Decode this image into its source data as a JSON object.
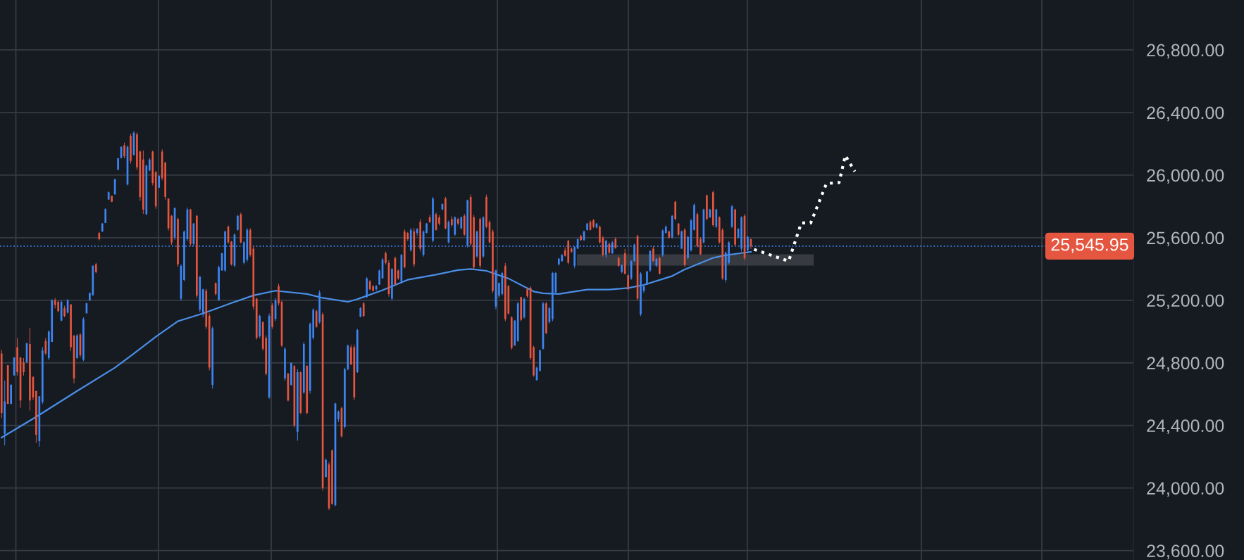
{
  "chart_data": {
    "type": "candlestick",
    "categories": [
      null,
      null,
      null,
      null,
      null,
      null,
      null,
      null,
      null,
      null,
      null,
      null,
      null,
      null,
      null,
      null,
      null,
      null,
      null,
      null,
      null,
      null,
      null,
      null,
      null,
      null,
      null,
      null,
      null,
      null,
      null,
      null,
      null,
      null,
      null,
      null,
      null,
      null,
      null,
      null,
      null,
      null,
      null,
      null,
      null,
      null,
      null,
      null,
      null,
      null,
      null,
      null,
      null,
      null,
      null,
      null,
      null,
      null,
      null,
      null,
      null,
      null,
      null,
      null,
      null,
      null,
      null,
      null,
      null,
      null,
      null,
      null,
      null,
      null,
      null,
      null,
      null,
      null,
      null,
      null,
      null,
      null,
      null,
      null,
      null,
      null,
      null,
      null,
      null,
      null,
      null,
      null,
      null,
      null,
      null,
      null,
      null,
      null,
      null,
      null,
      null,
      null,
      null,
      null,
      null,
      null,
      null,
      null,
      null,
      null,
      null,
      null,
      null,
      null,
      null,
      null,
      null,
      null,
      null,
      null,
      null,
      null,
      null,
      null,
      null,
      null,
      null,
      null,
      null,
      null,
      null,
      null,
      null,
      null,
      null,
      null,
      null,
      null,
      null,
      null,
      null,
      null,
      null,
      null,
      null,
      null,
      null,
      null,
      null,
      null,
      null,
      null,
      null,
      null,
      null,
      null,
      null,
      null,
      null,
      null,
      null,
      null,
      null,
      null,
      null,
      null,
      null,
      null,
      null,
      null,
      null,
      null,
      null,
      null,
      null,
      null,
      null,
      null,
      null,
      null,
      null,
      null,
      null,
      null,
      null,
      null,
      null,
      null,
      null,
      null,
      null,
      null,
      null,
      null,
      null,
      null,
      null,
      null,
      null,
      null,
      null,
      null,
      null,
      null,
      null,
      null,
      null,
      null,
      null,
      null,
      null,
      null,
      null,
      null,
      null,
      null,
      null,
      null,
      null,
      null,
      null,
      null,
      null,
      null,
      null,
      null,
      null,
      null,
      null,
      null,
      null,
      null,
      null,
      null,
      null,
      null,
      null,
      null,
      null,
      null,
      null,
      null,
      null,
      null,
      null,
      null,
      null,
      null,
      null,
      null,
      null,
      null,
      null,
      null,
      null,
      null,
      null,
      null,
      null,
      null,
      null,
      null,
      null,
      null,
      null,
      null,
      null,
      null,
      null,
      null,
      null,
      null,
      null,
      null,
      null,
      null,
      null,
      null,
      null,
      null,
      null,
      null,
      null,
      null,
      null,
      null,
      null,
      null,
      null,
      null,
      null,
      null,
      null,
      null,
      null,
      null,
      null,
      null,
      null,
      null,
      null,
      null,
      null,
      null,
      null,
      null,
      null,
      null,
      null,
      null,
      null,
      null,
      null,
      null,
      null,
      null,
      null,
      null,
      null,
      null,
      null,
      null,
      null,
      null,
      null,
      null,
      null,
      null,
      null,
      null,
      null,
      null,
      null,
      null,
      null,
      null,
      null,
      null,
      null,
      null,
      null,
      null,
      null,
      null,
      null,
      null,
      null,
      null,
      null,
      null,
      null,
      null,
      null,
      null,
      null,
      null,
      null,
      null,
      null,
      null
    ],
    "ohlc": [
      [
        24860,
        24884,
        24446,
        24480
      ],
      [
        24347,
        24686,
        24273,
        24554
      ],
      [
        24785,
        24785,
        24537,
        24537
      ],
      [
        24537,
        24661,
        24537,
        24661
      ],
      [
        24719,
        24835,
        24719,
        24835
      ],
      [
        24900,
        24959,
        24719,
        24740
      ],
      [
        24835,
        24835,
        24512,
        24560
      ],
      [
        24802,
        24830,
        24719,
        24740
      ],
      [
        24802,
        24926,
        24802,
        24926
      ],
      [
        24920,
        25025,
        24496,
        24560
      ],
      [
        24711,
        24711,
        24562,
        24580
      ],
      [
        24620,
        24620,
        24289,
        24340
      ],
      [
        24300,
        24587,
        24265,
        24587
      ],
      [
        24550,
        24901,
        24537,
        24880
      ],
      [
        24940,
        24959,
        24851,
        24860
      ],
      [
        24830,
        25008,
        24818,
        25000
      ],
      [
        24934,
        25207,
        24934,
        25200
      ],
      [
        25200,
        25215,
        25149,
        25170
      ],
      [
        25190,
        25198,
        25124,
        25130
      ],
      [
        25070,
        25198,
        25066,
        25190
      ],
      [
        25150,
        25165,
        25091,
        25100
      ],
      [
        25120,
        25207,
        25116,
        25200
      ],
      [
        25174,
        25174,
        24876,
        24900
      ],
      [
        24975,
        24975,
        24669,
        24700
      ],
      [
        24830,
        24983,
        24826,
        24975
      ],
      [
        24980,
        24991,
        24835,
        24850
      ],
      [
        24820,
        25091,
        24810,
        25080
      ],
      [
        25116,
        25182,
        25116,
        25182
      ],
      [
        25198,
        25248,
        25198,
        25248
      ],
      [
        25231,
        25422,
        25231,
        25422
      ],
      [
        25430,
        25438,
        25372,
        25380
      ],
      [
        25630,
        25636,
        25582,
        25590
      ],
      [
        25640,
        25694,
        25636,
        25690
      ],
      [
        25694,
        25785,
        25694,
        25785
      ],
      [
        25843,
        25896,
        25843,
        25890
      ],
      [
        25868,
        25868,
        25827,
        25830
      ],
      [
        25876,
        25975,
        25876,
        25975
      ],
      [
        26033,
        26108,
        26033,
        26108
      ],
      [
        26108,
        26182,
        26108,
        26182
      ],
      [
        26190,
        26207,
        26108,
        26120
      ],
      [
        25940,
        26190,
        25934,
        26180
      ],
      [
        26250,
        26265,
        26074,
        26090
      ],
      [
        26130,
        26281,
        26124,
        26270
      ],
      [
        26260,
        26273,
        26033,
        26050
      ],
      [
        26150,
        26157,
        25835,
        25860
      ],
      [
        26100,
        26157,
        25752,
        25780
      ],
      [
        25750,
        26066,
        25744,
        26060
      ],
      [
        26030,
        26108,
        26025,
        26100
      ],
      [
        26150,
        26157,
        25934,
        25950
      ],
      [
        26020,
        26025,
        25785,
        25800
      ],
      [
        25920,
        26000,
        25917,
        25995
      ],
      [
        26150,
        26165,
        25967,
        25980
      ],
      [
        26080,
        26083,
        25843,
        25860
      ],
      [
        25850,
        25851,
        25645,
        25660
      ],
      [
        25740,
        25744,
        25554,
        25570
      ],
      [
        25600,
        25793,
        25587,
        25790
      ],
      [
        25720,
        25727,
        25413,
        25430
      ],
      [
        25210,
        25430,
        25198,
        25420
      ],
      [
        25330,
        25645,
        25322,
        25640
      ],
      [
        25590,
        25793,
        25579,
        25780
      ],
      [
        25780,
        25785,
        25545,
        25560
      ],
      [
        25560,
        25694,
        25545,
        25690
      ],
      [
        25740,
        25744,
        25215,
        25230
      ],
      [
        25140,
        25355,
        25124,
        25350
      ],
      [
        25110,
        25273,
        25091,
        25270
      ],
      [
        25260,
        25273,
        25017,
        25030
      ],
      [
        25100,
        25116,
        24752,
        24770
      ],
      [
        24660,
        25033,
        24636,
        25020
      ],
      [
        25310,
        25314,
        25231,
        25240
      ],
      [
        25200,
        25422,
        25198,
        25410
      ],
      [
        25390,
        25504,
        25389,
        25500
      ],
      [
        25390,
        25645,
        25380,
        25640
      ],
      [
        25670,
        25678,
        25562,
        25570
      ],
      [
        25575,
        25579,
        25422,
        25430
      ],
      [
        25420,
        25628,
        25413,
        25620
      ],
      [
        25650,
        25744,
        25645,
        25740
      ],
      [
        25750,
        25760,
        25562,
        25570
      ],
      [
        25440,
        25579,
        25430,
        25570
      ],
      [
        25460,
        25661,
        25446,
        25650
      ],
      [
        25650,
        25661,
        25479,
        25490
      ],
      [
        25530,
        25545,
        25140,
        25160
      ],
      [
        25210,
        25215,
        24950,
        24960
      ],
      [
        24970,
        25108,
        24959,
        25100
      ],
      [
        25060,
        25066,
        24876,
        24890
      ],
      [
        24960,
        24975,
        24719,
        24730
      ],
      [
        24580,
        25116,
        24570,
        25100
      ],
      [
        25170,
        25182,
        25017,
        25030
      ],
      [
        25080,
        25215,
        25066,
        25200
      ],
      [
        25290,
        25306,
        25165,
        25180
      ],
      [
        25190,
        25198,
        24901,
        24910
      ],
      [
        24700,
        24901,
        24686,
        24890
      ],
      [
        24730,
        24736,
        24554,
        24560
      ],
      [
        24660,
        24802,
        24653,
        24800
      ],
      [
        24780,
        24785,
        24388,
        24400
      ],
      [
        24360,
        24760,
        24302,
        24740
      ],
      [
        24740,
        24744,
        24471,
        24480
      ],
      [
        24610,
        24934,
        24603,
        24920
      ],
      [
        24780,
        24785,
        24471,
        24480
      ],
      [
        24620,
        25058,
        24603,
        25050
      ],
      [
        24960,
        25149,
        24950,
        25140
      ],
      [
        25130,
        25141,
        25025,
        25030
      ],
      [
        25060,
        25264,
        25050,
        25250
      ],
      [
        25110,
        25124,
        23983,
        24000
      ],
      [
        24070,
        24190,
        24066,
        24180
      ],
      [
        24150,
        24165,
        23859,
        23870
      ],
      [
        24240,
        24248,
        23892,
        23900
      ],
      [
        23890,
        24545,
        23884,
        24540
      ],
      [
        24440,
        24496,
        24422,
        24490
      ],
      [
        24510,
        24521,
        24322,
        24330
      ],
      [
        24390,
        24769,
        24380,
        24760
      ],
      [
        24760,
        24917,
        24752,
        24910
      ],
      [
        24900,
        24917,
        24785,
        24790
      ],
      [
        24900,
        24917,
        24562,
        24580
      ],
      [
        24740,
        25017,
        24736,
        25010
      ],
      [
        25095,
        25157,
        25091,
        25150
      ],
      [
        25180,
        25190,
        25091,
        25100
      ],
      [
        25220,
        25347,
        25215,
        25340
      ],
      [
        25320,
        25331,
        25264,
        25270
      ],
      [
        25290,
        25298,
        25256,
        25260
      ],
      [
        25270,
        25298,
        25262,
        25290
      ],
      [
        25300,
        25397,
        25298,
        25390
      ],
      [
        25340,
        25471,
        25339,
        25460
      ],
      [
        25500,
        25512,
        25430,
        25440
      ],
      [
        25440,
        25455,
        25223,
        25240
      ],
      [
        25210,
        25405,
        25198,
        25400
      ],
      [
        25470,
        25479,
        25298,
        25300
      ],
      [
        25390,
        25397,
        25331,
        25340
      ],
      [
        25320,
        25496,
        25314,
        25490
      ],
      [
        25640,
        25653,
        25405,
        25410
      ],
      [
        25630,
        25636,
        25579,
        25590
      ],
      [
        25520,
        25661,
        25512,
        25650
      ],
      [
        25640,
        25661,
        25413,
        25430
      ],
      [
        25630,
        25661,
        25612,
        25655
      ],
      [
        25700,
        25719,
        25512,
        25530
      ],
      [
        25490,
        25645,
        25479,
        25640
      ],
      [
        25630,
        25694,
        25628,
        25690
      ],
      [
        25730,
        25744,
        25694,
        25700
      ],
      [
        25580,
        25860,
        25570,
        25850
      ],
      [
        25750,
        25760,
        25645,
        25650
      ],
      [
        25730,
        25744,
        25678,
        25690
      ],
      [
        25780,
        25818,
        25777,
        25815
      ],
      [
        25850,
        25860,
        25653,
        25660
      ],
      [
        25570,
        25711,
        25562,
        25700
      ],
      [
        25720,
        25736,
        25669,
        25680
      ],
      [
        25620,
        25736,
        25612,
        25730
      ],
      [
        25720,
        25727,
        25678,
        25690
      ],
      [
        25660,
        25736,
        25653,
        25730
      ],
      [
        25740,
        25752,
        25612,
        25620
      ],
      [
        25550,
        25843,
        25537,
        25840
      ],
      [
        25860,
        25876,
        25545,
        25560
      ],
      [
        25730,
        25744,
        25397,
        25410
      ],
      [
        25480,
        25645,
        25471,
        25640
      ],
      [
        25720,
        25727,
        25405,
        25420
      ],
      [
        25480,
        25736,
        25471,
        25730
      ],
      [
        25860,
        25876,
        25661,
        25670
      ],
      [
        25700,
        25711,
        25562,
        25570
      ],
      [
        25640,
        25653,
        25248,
        25260
      ],
      [
        25160,
        25397,
        25141,
        25390
      ],
      [
        25230,
        25314,
        25215,
        25310
      ],
      [
        25240,
        25380,
        25231,
        25375
      ],
      [
        25420,
        25438,
        25066,
        25080
      ],
      [
        25290,
        25298,
        25108,
        25115
      ],
      [
        25090,
        25099,
        24884,
        24895
      ],
      [
        24910,
        25074,
        24909,
        25070
      ],
      [
        24940,
        25190,
        24934,
        25180
      ],
      [
        25220,
        25223,
        25066,
        25075
      ],
      [
        25090,
        25215,
        25083,
        25210
      ],
      [
        25270,
        25281,
        25215,
        25225
      ],
      [
        25280,
        25289,
        24818,
        24830
      ],
      [
        24900,
        24909,
        24711,
        24720
      ],
      [
        24690,
        24777,
        24686,
        24770
      ],
      [
        24750,
        24884,
        24744,
        24880
      ],
      [
        24890,
        25190,
        24884,
        25180
      ],
      [
        25180,
        25190,
        24983,
        24990
      ],
      [
        25060,
        25157,
        25050,
        25150
      ],
      [
        25080,
        25380,
        25066,
        25375
      ],
      [
        25250,
        25380,
        25248,
        25375
      ],
      [
        25430,
        25471,
        25422,
        25465
      ],
      [
        25450,
        25496,
        25446,
        25490
      ],
      [
        25520,
        25537,
        25479,
        25485
      ],
      [
        25580,
        25587,
        25430,
        25440
      ],
      [
        25530,
        25537,
        25504,
        25510
      ],
      [
        25420,
        25545,
        25405,
        25540
      ],
      [
        25530,
        25595,
        25529,
        25590
      ],
      [
        25610,
        25620,
        25579,
        25585
      ],
      [
        25585,
        25645,
        25579,
        25640
      ],
      [
        25650,
        25694,
        25645,
        25690
      ],
      [
        25700,
        25711,
        25645,
        25650
      ],
      [
        25710,
        25719,
        25661,
        25670
      ],
      [
        25665,
        25694,
        25661,
        25690
      ],
      [
        25670,
        25678,
        25562,
        25570
      ],
      [
        25600,
        25612,
        25479,
        25490
      ],
      [
        25490,
        25587,
        25471,
        25580
      ],
      [
        25560,
        25570,
        25496,
        25505
      ],
      [
        25500,
        25579,
        25496,
        25570
      ],
      [
        25590,
        25603,
        25529,
        25535
      ],
      [
        25470,
        25479,
        25413,
        25420
      ],
      [
        25380,
        25430,
        25372,
        25425
      ],
      [
        25500,
        25529,
        25364,
        25370
      ],
      [
        25360,
        25364,
        25264,
        25270
      ],
      [
        25340,
        25455,
        25331,
        25450
      ],
      [
        25450,
        25562,
        25446,
        25555
      ],
      [
        25610,
        25620,
        25198,
        25210
      ],
      [
        25110,
        25380,
        25099,
        25370
      ],
      [
        25260,
        25298,
        25248,
        25290
      ],
      [
        25300,
        25388,
        25298,
        25385
      ],
      [
        25390,
        25521,
        25380,
        25515
      ],
      [
        25530,
        25545,
        25446,
        25450
      ],
      [
        25420,
        25471,
        25413,
        25465
      ],
      [
        25470,
        25479,
        25364,
        25370
      ],
      [
        25490,
        25653,
        25479,
        25645
      ],
      [
        25630,
        25678,
        25628,
        25670
      ],
      [
        25640,
        25645,
        25595,
        25600
      ],
      [
        25600,
        25744,
        25595,
        25740
      ],
      [
        25830,
        25835,
        25711,
        25720
      ],
      [
        25690,
        25694,
        25612,
        25620
      ],
      [
        25530,
        25645,
        25529,
        25640
      ],
      [
        25650,
        25661,
        25413,
        25425
      ],
      [
        25470,
        25612,
        25463,
        25605
      ],
      [
        25520,
        25719,
        25512,
        25710
      ],
      [
        25650,
        25818,
        25645,
        25810
      ],
      [
        25750,
        25760,
        25537,
        25545
      ],
      [
        25590,
        25603,
        25488,
        25495
      ],
      [
        25570,
        25785,
        25562,
        25780
      ],
      [
        25870,
        25876,
        25711,
        25720
      ],
      [
        25730,
        25785,
        25727,
        25780
      ],
      [
        25890,
        25901,
        25669,
        25680
      ],
      [
        25670,
        25785,
        25661,
        25780
      ],
      [
        25730,
        25736,
        25562,
        25570
      ],
      [
        25650,
        25661,
        25331,
        25340
      ],
      [
        25330,
        25512,
        25314,
        25505
      ],
      [
        25440,
        25579,
        25430,
        25570
      ],
      [
        25670,
        25810,
        25661,
        25800
      ],
      [
        25780,
        25785,
        25545,
        25555
      ],
      [
        25600,
        25661,
        25595,
        25655
      ],
      [
        25530,
        25736,
        25512,
        25730
      ],
      [
        25740,
        25752,
        25455,
        25470
      ],
      [
        25520,
        25612,
        25512,
        25605
      ],
      [
        25590,
        25595,
        25529,
        25546
      ],
      null,
      null,
      null,
      null,
      null,
      null,
      null,
      null,
      null,
      null,
      null,
      null,
      null,
      null,
      null,
      null,
      null,
      null,
      null,
      null,
      null,
      null,
      null,
      null,
      null,
      null,
      null,
      null,
      null,
      null,
      null,
      null,
      null,
      null,
      null,
      null,
      null,
      null,
      null,
      null,
      null,
      null,
      null,
      null,
      null,
      null,
      null,
      null,
      null,
      null,
      null,
      null,
      null,
      null,
      null,
      null,
      null,
      null,
      null,
      null,
      null,
      null,
      null,
      null,
      null,
      null,
      null,
      null,
      null,
      null,
      null,
      null,
      null,
      null,
      null,
      null,
      null,
      null,
      null,
      null,
      null,
      null,
      null,
      null,
      null,
      null,
      null,
      null,
      null,
      null,
      null,
      null,
      null,
      null,
      null,
      null,
      null,
      null,
      null,
      null,
      null,
      null,
      null,
      null,
      null,
      null,
      null,
      null,
      null,
      null,
      null,
      null,
      null,
      null,
      null,
      null,
      null,
      null,
      null,
      null,
      null
    ],
    "series": [
      {
        "type": "line",
        "color": "#4a8fe7",
        "line_style": "solid",
        "values": [
          24322,
          null,
          null,
          null,
          null,
          null,
          null,
          null,
          null,
          null,
          null,
          24455,
          null,
          null,
          null,
          null,
          null,
          null,
          null,
          null,
          null,
          null,
          null,
          null,
          24620,
          null,
          null,
          null,
          null,
          null,
          null,
          null,
          null,
          null,
          null,
          null,
          24769,
          null,
          null,
          null,
          null,
          null,
          24859,
          null,
          null,
          null,
          null,
          null,
          null,
          24967,
          null,
          null,
          null,
          null,
          null,
          null,
          25066,
          null,
          null,
          null,
          null,
          null,
          null,
          null,
          25116,
          null,
          null,
          null,
          null,
          null,
          null,
          null,
          null,
          25182,
          null,
          null,
          null,
          null,
          null,
          null,
          25231,
          null,
          null,
          null,
          null,
          null,
          null,
          25261,
          null,
          null,
          null,
          null,
          null,
          null,
          null,
          null,
          null,
          25240,
          null,
          null,
          null,
          null,
          25215,
          null,
          null,
          null,
          null,
          null,
          null,
          null,
          25190,
          null,
          null,
          25207,
          null,
          null,
          null,
          null,
          null,
          null,
          null,
          25264,
          null,
          null,
          null,
          null,
          null,
          null,
          null,
          25331,
          null,
          null,
          null,
          null,
          null,
          null,
          null,
          null,
          25364,
          null,
          null,
          null,
          null,
          null,
          null,
          25393,
          null,
          null,
          null,
          25400,
          null,
          null,
          null,
          null,
          25388,
          null,
          null,
          null,
          null,
          null,
          null,
          25339,
          null,
          null,
          null,
          null,
          null,
          null,
          null,
          25256,
          null,
          null,
          25245,
          null,
          null,
          null,
          null,
          25240,
          null,
          null,
          null,
          null,
          25256,
          null,
          null,
          null,
          25268,
          null,
          null,
          null,
          null,
          null,
          null,
          25268,
          null,
          null,
          null,
          null,
          null,
          25278,
          null,
          null,
          null,
          null,
          25298,
          null,
          null,
          null,
          null,
          null,
          null,
          null,
          null,
          25355,
          null,
          null,
          null,
          25397,
          null,
          null,
          null,
          null,
          null,
          null,
          null,
          null,
          25471,
          null,
          null,
          null,
          25488,
          null,
          null,
          null,
          null,
          null,
          null,
          null,
          25509,
          null,
          null,
          null,
          null,
          null,
          null,
          null,
          null,
          null,
          null,
          null,
          null,
          null,
          null,
          null,
          null,
          null,
          null,
          null,
          null,
          null,
          null,
          null,
          null,
          null,
          null,
          null,
          null,
          null,
          null,
          null,
          null,
          null,
          null,
          null,
          null,
          null,
          null,
          null,
          null,
          null,
          null,
          null,
          null,
          null,
          null,
          null,
          null,
          null,
          null,
          null,
          null,
          null,
          null,
          null,
          null,
          null,
          null,
          null,
          null,
          null,
          null,
          null,
          null,
          null,
          null,
          null,
          null,
          null,
          null,
          null,
          null,
          null,
          null,
          null,
          null,
          null,
          null,
          null,
          null,
          null,
          null,
          null,
          null,
          null,
          null,
          null,
          null,
          null,
          null,
          null,
          null,
          null,
          null,
          null,
          null,
          null,
          null,
          null,
          null,
          null,
          null,
          null,
          null,
          null,
          null,
          null,
          null,
          null,
          null,
          null,
          null,
          null,
          null,
          null,
          null,
          null,
          null,
          null,
          null,
          null
        ]
      },
      {
        "type": "line",
        "color": "#ffffff",
        "line_style": "dotted",
        "values": [
          null,
          null,
          null,
          null,
          null,
          null,
          null,
          null,
          null,
          null,
          null,
          null,
          null,
          null,
          null,
          null,
          null,
          null,
          null,
          null,
          null,
          null,
          null,
          null,
          null,
          null,
          null,
          null,
          null,
          null,
          null,
          null,
          null,
          null,
          null,
          null,
          null,
          null,
          null,
          null,
          null,
          null,
          null,
          null,
          null,
          null,
          null,
          null,
          null,
          null,
          null,
          null,
          null,
          null,
          null,
          null,
          null,
          null,
          null,
          null,
          null,
          null,
          null,
          null,
          null,
          null,
          null,
          null,
          null,
          null,
          null,
          null,
          null,
          null,
          null,
          null,
          null,
          null,
          null,
          null,
          null,
          null,
          null,
          null,
          null,
          null,
          null,
          null,
          null,
          null,
          null,
          null,
          null,
          null,
          null,
          null,
          null,
          null,
          null,
          null,
          null,
          null,
          null,
          null,
          null,
          null,
          null,
          null,
          null,
          null,
          null,
          null,
          null,
          null,
          null,
          null,
          null,
          null,
          null,
          null,
          null,
          null,
          null,
          null,
          null,
          null,
          null,
          null,
          null,
          null,
          null,
          null,
          null,
          null,
          null,
          null,
          null,
          null,
          null,
          null,
          null,
          null,
          null,
          null,
          null,
          null,
          null,
          null,
          null,
          null,
          null,
          null,
          null,
          null,
          null,
          null,
          null,
          null,
          null,
          null,
          null,
          null,
          null,
          null,
          null,
          null,
          null,
          null,
          null,
          null,
          null,
          null,
          null,
          null,
          null,
          null,
          null,
          null,
          null,
          null,
          null,
          null,
          null,
          null,
          null,
          null,
          null,
          null,
          null,
          null,
          null,
          null,
          null,
          null,
          null,
          null,
          null,
          null,
          null,
          null,
          null,
          null,
          null,
          null,
          null,
          null,
          null,
          null,
          null,
          null,
          null,
          null,
          null,
          null,
          null,
          null,
          null,
          null,
          null,
          null,
          null,
          null,
          null,
          null,
          null,
          null,
          null,
          null,
          null,
          null,
          null,
          null,
          null,
          null,
          null,
          null,
          null,
          null,
          null,
          25525,
          null,
          null,
          null,
          null,
          null,
          null,
          null,
          null,
          null,
          null,
          25450,
          null,
          null,
          null,
          25694,
          null,
          null,
          25694,
          null,
          null,
          null,
          null,
          25946,
          null,
          null,
          null,
          25952,
          null,
          26125,
          null,
          null,
          26023,
          null,
          null,
          null,
          null,
          null,
          null,
          null,
          null,
          null,
          null,
          null,
          null,
          null,
          null,
          null,
          null,
          null,
          null,
          null,
          null,
          null,
          null,
          null,
          null,
          null,
          null,
          null,
          null,
          null,
          null,
          null,
          null,
          null,
          null,
          null,
          null,
          null,
          null,
          null,
          null,
          null,
          null,
          null,
          null,
          null,
          null,
          null,
          null,
          null,
          null,
          null,
          null,
          null,
          null,
          null,
          null,
          null,
          null,
          null,
          null,
          null,
          null,
          null,
          null,
          null,
          null,
          null,
          null,
          null,
          null,
          null,
          null,
          null,
          null,
          null,
          null,
          null,
          null,
          null,
          null,
          null,
          null,
          null,
          null,
          null,
          null,
          null,
          null
        ]
      }
    ],
    "ylim": [
      23540,
      27119
    ],
    "yticks": [
      {
        "value": 23600,
        "label": "23,600.00"
      },
      {
        "value": 24000,
        "label": "24,000.00"
      },
      {
        "value": 24400,
        "label": "24,400.00"
      },
      {
        "value": 24800,
        "label": "24,800.00"
      },
      {
        "value": 25200,
        "label": "25,200.00"
      },
      {
        "value": 25600,
        "label": "25,600.00"
      },
      {
        "value": 26000,
        "label": "26,000.00"
      },
      {
        "value": 26400,
        "label": "26,400.00"
      },
      {
        "value": 26800,
        "label": "26,800.00"
      }
    ],
    "tick_labels": "y",
    "grid": true,
    "ref_lines": [
      {
        "axis": "y",
        "value": 25545.95,
        "label": "25,545.95",
        "color": "#3d86f2",
        "line_style": "dotted"
      }
    ]
  }
}
